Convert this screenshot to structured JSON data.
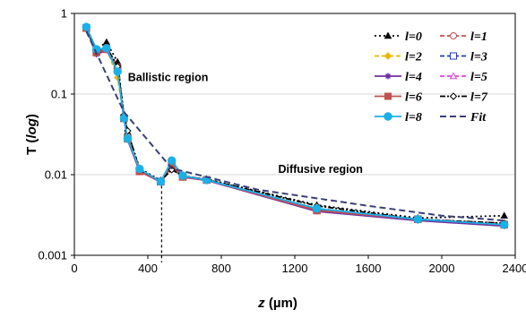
{
  "chart_data": {
    "type": "line",
    "xlabel_prefix": "z",
    "xlabel_suffix": " (µm)",
    "ylabel_prefix": "T (",
    "ylabel_italic": "log",
    "ylabel_suffix": ")",
    "xlim": [
      0,
      2400
    ],
    "ylim": [
      0.001,
      1
    ],
    "yscale": "log",
    "x_ticks": [
      "0",
      "400",
      "800",
      "1200",
      "1600",
      "2000",
      "2400"
    ],
    "y_ticks": [
      "0.001",
      "0.01",
      "0.1",
      "1"
    ],
    "annotations": [
      {
        "text": "Ballistic region",
        "x": 510,
        "y": 0.145
      },
      {
        "text": "Diffusive region",
        "x": 1340,
        "y": 0.0105
      }
    ],
    "reference_line": {
      "x": 475,
      "y_top": 0.0085
    },
    "legend_position": "top-right",
    "series": [
      {
        "name": "l=0",
        "color": "#000000",
        "dash": "2,3",
        "marker": "triangle",
        "filled": true,
        "x": [
          65,
          120,
          175,
          235,
          270,
          290,
          355,
          470,
          530,
          590,
          720,
          1320,
          1870,
          2340
        ],
        "y": [
          0.68,
          0.36,
          0.44,
          0.25,
          0.055,
          0.034,
          0.012,
          0.0085,
          0.012,
          0.0095,
          0.0088,
          0.0042,
          0.0029,
          0.0031
        ]
      },
      {
        "name": "l=1",
        "color": "#c0504d",
        "dash": "5,3",
        "marker": "circle",
        "filled": false,
        "x": [
          65,
          120,
          175,
          235,
          270,
          290,
          355,
          470,
          530,
          590,
          720,
          1320,
          1870,
          2340
        ],
        "y": [
          0.66,
          0.34,
          0.38,
          0.22,
          0.05,
          0.03,
          0.011,
          0.0082,
          0.0125,
          0.0093,
          0.0086,
          0.0038,
          0.0028,
          0.0025
        ]
      },
      {
        "name": "l=2",
        "color": "#f0b400",
        "dash": "5,3",
        "marker": "diamond",
        "filled": true,
        "x": [
          65,
          120,
          175,
          235,
          270,
          290,
          355,
          470,
          530,
          590,
          720,
          1320,
          1870,
          2340
        ],
        "y": [
          0.65,
          0.33,
          0.37,
          0.16,
          0.05,
          0.028,
          0.011,
          0.0082,
          0.0135,
          0.0095,
          0.0086,
          0.0037,
          0.0028,
          0.0024
        ]
      },
      {
        "name": "l=3",
        "color": "#1f3fbf",
        "dash": "5,3",
        "marker": "square",
        "filled": false,
        "x": [
          65,
          120,
          175,
          235,
          270,
          290,
          355,
          470,
          530,
          590,
          720,
          1320,
          1870,
          2340
        ],
        "y": [
          0.66,
          0.33,
          0.36,
          0.2,
          0.05,
          0.028,
          0.011,
          0.0083,
          0.013,
          0.0094,
          0.0086,
          0.0037,
          0.0028,
          0.0024
        ]
      },
      {
        "name": "l=4",
        "color": "#7030a0",
        "dash": "",
        "marker": "star",
        "filled": true,
        "x": [
          65,
          120,
          175,
          235,
          270,
          290,
          355,
          470,
          530,
          590,
          720,
          1320,
          1870,
          2340
        ],
        "y": [
          0.65,
          0.31,
          0.35,
          0.2,
          0.05,
          0.027,
          0.011,
          0.0081,
          0.013,
          0.0093,
          0.0085,
          0.0035,
          0.0027,
          0.0023
        ]
      },
      {
        "name": "l=5",
        "color": "#e040e0",
        "dash": "5,3",
        "marker": "triangle",
        "filled": false,
        "x": [
          65,
          120,
          175,
          235,
          270,
          290,
          355,
          470,
          530,
          590,
          720,
          1320,
          1870,
          2340
        ],
        "y": [
          0.66,
          0.33,
          0.36,
          0.21,
          0.05,
          0.028,
          0.011,
          0.0082,
          0.013,
          0.0094,
          0.0086,
          0.0036,
          0.0028,
          0.0024
        ]
      },
      {
        "name": "l=6",
        "color": "#c0504d",
        "dash": "",
        "marker": "square",
        "filled": true,
        "x": [
          65,
          120,
          175,
          235,
          270,
          290,
          355,
          470,
          530,
          590,
          720,
          1320,
          1870,
          2340
        ],
        "y": [
          0.66,
          0.33,
          0.36,
          0.21,
          0.05,
          0.028,
          0.011,
          0.0082,
          0.013,
          0.0094,
          0.0086,
          0.0036,
          0.0028,
          0.0024
        ]
      },
      {
        "name": "l=7",
        "color": "#000000",
        "dash": "6,2,2,2",
        "marker": "diamond",
        "filled": false,
        "x": [
          65,
          120,
          175,
          235,
          270,
          290,
          355,
          470,
          530,
          590,
          720,
          1320,
          1870,
          2340
        ],
        "y": [
          0.67,
          0.34,
          0.38,
          0.22,
          0.055,
          0.035,
          0.0115,
          0.0084,
          0.0115,
          0.0097,
          0.0087,
          0.0041,
          0.0028,
          0.0025
        ]
      },
      {
        "name": "l=8",
        "color": "#1ab0e8",
        "dash": "",
        "marker": "circle",
        "filled": true,
        "x": [
          65,
          120,
          175,
          235,
          270,
          290,
          355,
          470,
          530,
          590,
          720,
          1320,
          1870,
          2340
        ],
        "y": [
          0.68,
          0.36,
          0.37,
          0.19,
          0.05,
          0.028,
          0.0118,
          0.0082,
          0.015,
          0.0097,
          0.0086,
          0.0038,
          0.0028,
          0.0024
        ]
      },
      {
        "name": "Fit",
        "color": "#3b3f7a",
        "dash": "7,4",
        "marker": "none",
        "filled": false,
        "x": [
          65,
          270,
          530,
          1000,
          1600,
          2000,
          2340
        ],
        "y": [
          0.6,
          0.06,
          0.012,
          0.0065,
          0.0041,
          0.0031,
          0.0027
        ]
      }
    ]
  }
}
